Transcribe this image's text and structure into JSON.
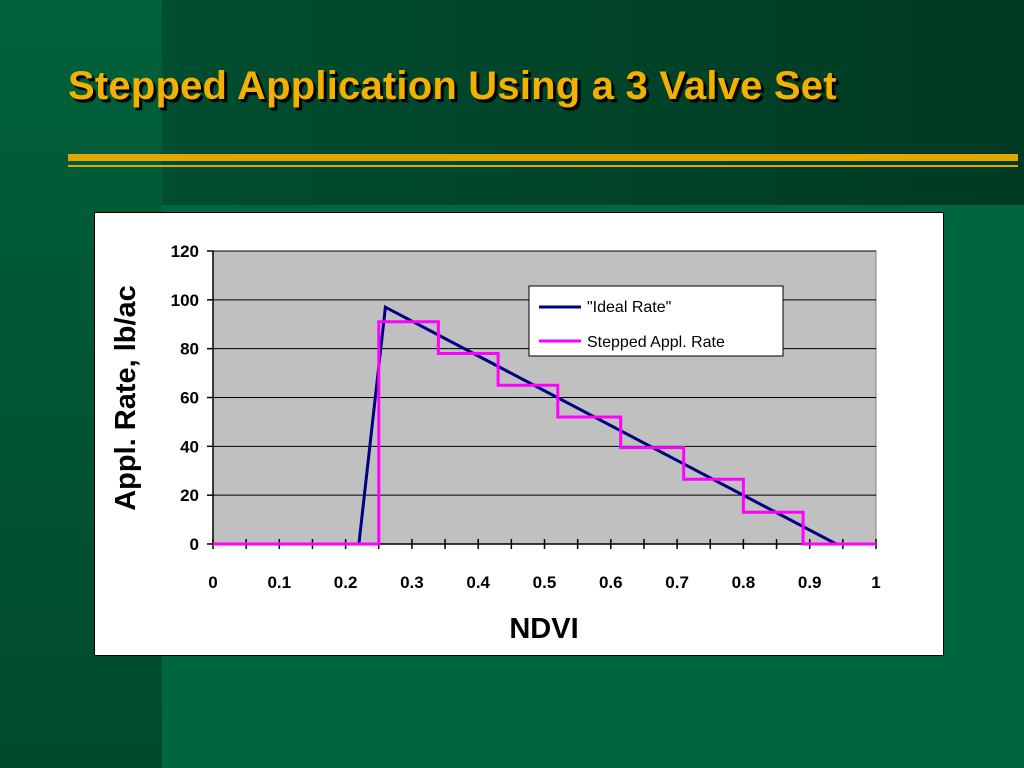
{
  "slide": {
    "title": "Stepped Application Using a 3 Valve Set"
  },
  "colors": {
    "background": "#00663f",
    "title": "#f2b000",
    "rule": "#e2a600",
    "plot_area": "#c0c0c0"
  },
  "chart_data": {
    "type": "line",
    "xlabel": "NDVI",
    "ylabel": "Appl. Rate, lb/ac",
    "xlim": [
      0,
      1
    ],
    "ylim": [
      0,
      120
    ],
    "x_ticks": [
      "0",
      "0.1",
      "0.2",
      "0.3",
      "0.4",
      "0.5",
      "0.6",
      "0.7",
      "0.8",
      "0.9",
      "1"
    ],
    "y_ticks": [
      "0",
      "20",
      "40",
      "60",
      "80",
      "100",
      "120"
    ],
    "grid": "horizontal",
    "legend_position": "top-right",
    "series": [
      {
        "name": "\"Ideal Rate\"",
        "color": "#000080",
        "points": [
          [
            0,
            0
          ],
          [
            0.22,
            0
          ],
          [
            0.26,
            97
          ],
          [
            0.94,
            0
          ],
          [
            1,
            0
          ]
        ]
      },
      {
        "name": "Stepped Appl. Rate",
        "color": "#ff00ff",
        "points": [
          [
            0,
            0
          ],
          [
            0.25,
            0
          ],
          [
            0.25,
            91
          ],
          [
            0.34,
            91
          ],
          [
            0.34,
            78
          ],
          [
            0.43,
            78
          ],
          [
            0.43,
            65
          ],
          [
            0.52,
            65
          ],
          [
            0.52,
            52
          ],
          [
            0.615,
            52
          ],
          [
            0.615,
            39.5
          ],
          [
            0.71,
            39.5
          ],
          [
            0.71,
            26.5
          ],
          [
            0.8,
            26.5
          ],
          [
            0.8,
            13
          ],
          [
            0.89,
            13
          ],
          [
            0.89,
            0
          ],
          [
            1,
            0
          ]
        ]
      }
    ]
  }
}
